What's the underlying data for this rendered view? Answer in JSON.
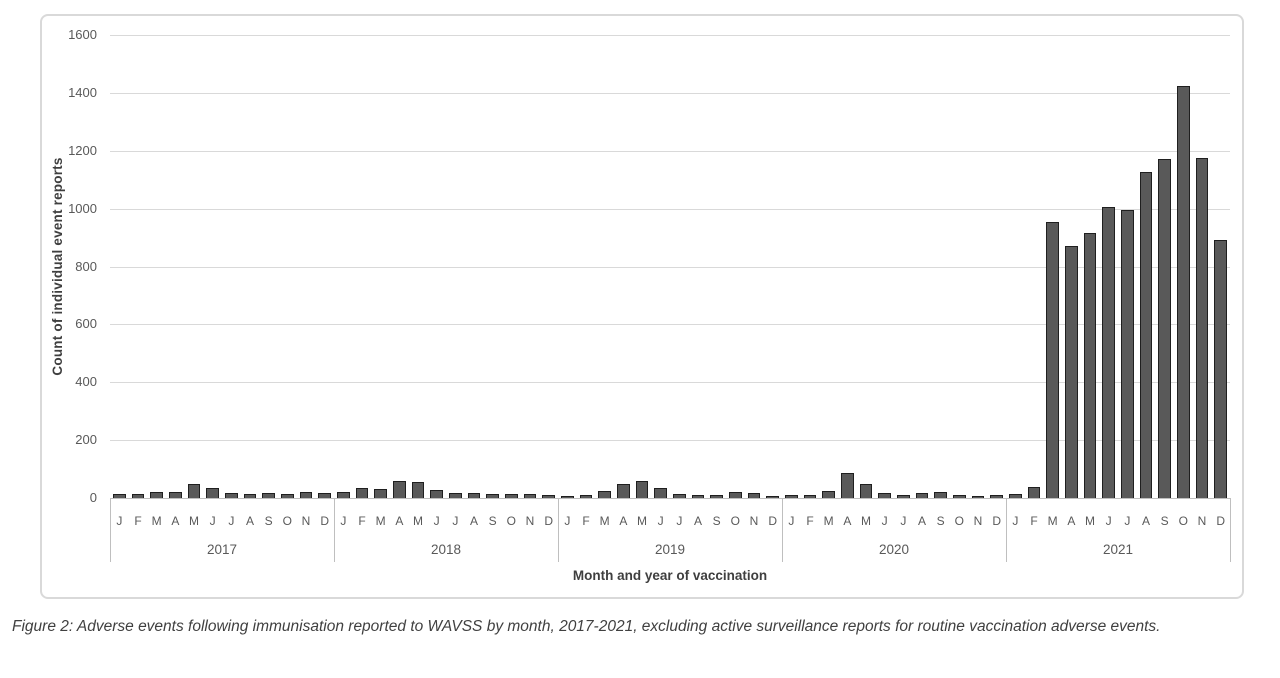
{
  "figure": {
    "caption": "Figure 2: Adverse events following immunisation reported to WAVSS by month, 2017-2021, excluding active surveillance reports for routine vaccination adverse events."
  },
  "chart_data": {
    "type": "bar",
    "title": "",
    "xlabel": "Month and year of vaccination",
    "ylabel": "Count of individual event reports",
    "ylim": [
      0,
      1600
    ],
    "yticks": [
      0,
      200,
      400,
      600,
      800,
      1000,
      1200,
      1400,
      1600
    ],
    "grid": true,
    "legend_position": "none",
    "month_letters": [
      "J",
      "F",
      "M",
      "A",
      "M",
      "J",
      "J",
      "A",
      "S",
      "O",
      "N",
      "D"
    ],
    "series": [
      {
        "year": "2017",
        "values": [
          14,
          13,
          20,
          22,
          48,
          34,
          19,
          14,
          16,
          14,
          20,
          16
        ]
      },
      {
        "year": "2018",
        "values": [
          20,
          35,
          30,
          58,
          55,
          27,
          17,
          18,
          13,
          15,
          15,
          12
        ]
      },
      {
        "year": "2019",
        "values": [
          8,
          10,
          25,
          50,
          60,
          35,
          15,
          12,
          12,
          20,
          18,
          7
        ]
      },
      {
        "year": "2020",
        "values": [
          10,
          12,
          25,
          85,
          50,
          16,
          12,
          16,
          20,
          10,
          8,
          10
        ]
      },
      {
        "year": "2021",
        "values": [
          14,
          38,
          955,
          870,
          915,
          1005,
          995,
          1125,
          1170,
          1425,
          1175,
          890
        ]
      }
    ],
    "colors": {
      "bar_fill": "#595959",
      "bar_border": "#1f1f1f",
      "gridline": "#d9d9d9",
      "axis_line": "#bfbfbf",
      "tick_text": "#595959",
      "title_text": "#3f3f3f"
    }
  }
}
